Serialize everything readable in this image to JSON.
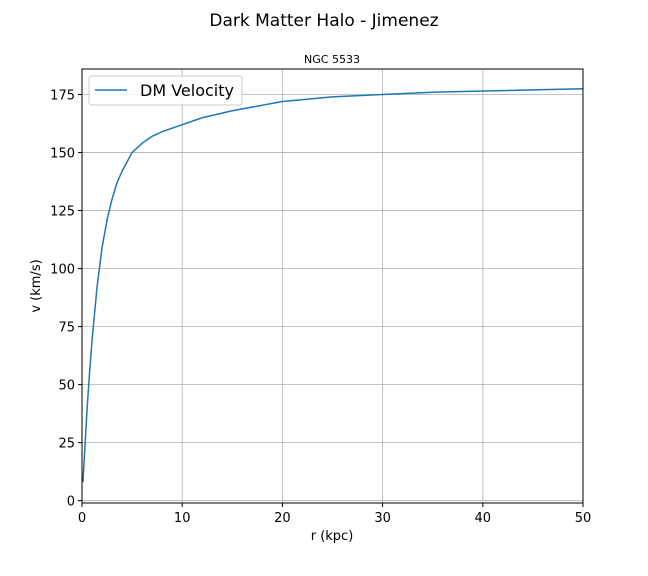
{
  "figure": {
    "suptitle": "Dark Matter Halo - Jimenez"
  },
  "chart_data": {
    "type": "line",
    "title": "NGC 5533",
    "xlabel": "r (kpc)",
    "ylabel": "v (km/s)",
    "xlim": [
      0,
      50
    ],
    "ylim": [
      -1,
      186
    ],
    "xticks": [
      0,
      10,
      20,
      30,
      40,
      50
    ],
    "yticks": [
      0,
      25,
      50,
      75,
      100,
      125,
      150,
      175
    ],
    "grid": true,
    "legend": {
      "placement": "upper-left"
    },
    "series": [
      {
        "name": "DM Velocity",
        "color": "#1f77b4",
        "x": [
          0.1,
          0.25,
          0.5,
          0.75,
          1,
          1.5,
          2,
          2.5,
          3,
          3.5,
          4,
          5,
          6,
          7,
          8,
          10,
          12,
          15,
          20,
          25,
          30,
          35,
          40,
          45,
          50
        ],
        "y": [
          8,
          20,
          39,
          55,
          69,
          92,
          109,
          121,
          130,
          137,
          142,
          150,
          154,
          157,
          159,
          162,
          165,
          168,
          172,
          174,
          175,
          176,
          176.5,
          177,
          177.5
        ]
      }
    ]
  }
}
